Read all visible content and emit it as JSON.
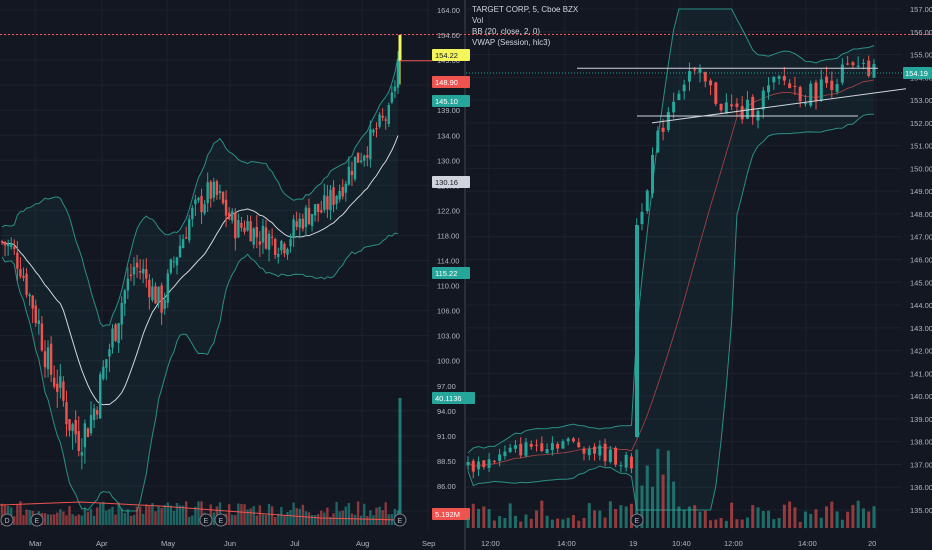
{
  "colors": {
    "bg": "#131722",
    "grid": "#1e222d",
    "up": "#26a69a",
    "down": "#ef5350",
    "text": "#b2b5be",
    "bb": "#2a8f86",
    "yellow": "#f4f65c",
    "sep": "#2a2e39"
  },
  "left_panel": {
    "price_ticks": [
      "164.00",
      "154.00",
      "149.00",
      "145.00",
      "139.00",
      "134.00",
      "130.00",
      "126.00",
      "122.00",
      "118.00",
      "114.00",
      "110.00",
      "106.00",
      "103.00",
      "100.00",
      "97.00",
      "94.00",
      "91.00",
      "88.50",
      "86.00",
      "83.00"
    ],
    "x_ticks": [
      "Mar",
      "Apr",
      "May",
      "Jun",
      "Jul",
      "Aug",
      "Sep"
    ],
    "badges": [
      {
        "text": "154.22",
        "color": "#f4f65c",
        "fg": "#131722",
        "value": 154.22
      },
      {
        "text": "148.90",
        "color": "#ef5350",
        "fg": "#ffffff",
        "value": 148.9
      },
      {
        "text": "145.10",
        "color": "#26a69a",
        "fg": "#ffffff",
        "value": 145.1
      },
      {
        "text": "130.16",
        "color": "#d1d4dc",
        "fg": "#131722",
        "value": 130.16
      },
      {
        "text": "115.22",
        "color": "#26a69a",
        "fg": "#ffffff",
        "value": 115.22
      },
      {
        "text": "40.1136",
        "color": "#26a69a",
        "fg": "#ffffff",
        "value": 40.1136
      },
      {
        "text": "5.192M",
        "color": "#ef5350",
        "fg": "#ffffff",
        "value": 5.192
      }
    ],
    "event_markers": [
      "D",
      "E",
      "E",
      "E",
      "E"
    ]
  },
  "right_panel": {
    "header": {
      "line1": "TARGET CORP, 5, Cboe BZX",
      "line2": "Vol",
      "line3": "BB (20, close, 2, 0)",
      "line4": "VWAP (Session, hlc3)"
    },
    "price_ticks": [
      "157.00",
      "156.00",
      "155.00",
      "154.00",
      "153.00",
      "152.00",
      "151.00",
      "150.00",
      "149.00",
      "148.00",
      "147.00",
      "146.00",
      "145.00",
      "144.00",
      "143.00",
      "142.00",
      "141.00",
      "140.00",
      "139.00",
      "138.00",
      "137.00",
      "136.00",
      "135.00"
    ],
    "x_ticks": [
      "12:00",
      "14:00",
      "19",
      "10:40",
      "12:00",
      "14:00",
      "20"
    ],
    "badges": [
      {
        "text": "154.19",
        "color": "#26a69a",
        "fg": "#ffffff",
        "value": 154.19
      }
    ],
    "event_markers": [
      "E"
    ]
  },
  "chart_data": [
    {
      "type": "candlestick",
      "title": "",
      "interval": "daily",
      "x_range": [
        "Feb",
        "Sep"
      ],
      "ylim": [
        83,
        164
      ],
      "close_path": [
        117,
        116,
        113,
        108,
        104,
        99,
        97,
        93,
        91,
        92,
        95,
        100,
        104,
        109,
        113,
        112,
        109,
        107,
        113,
        117,
        121,
        123,
        125,
        124,
        121,
        119,
        120,
        118,
        118,
        117,
        117,
        119,
        121,
        122,
        122,
        124,
        126,
        129,
        131,
        133,
        136,
        138,
        148.9
      ],
      "last_price": 148.9,
      "high": 154.22,
      "series": [
        {
          "name": "Vol",
          "peak_volume": "40.1136"
        }
      ]
    },
    {
      "type": "candlestick",
      "title": "TARGET CORP, 5, Cboe BZX",
      "interval": "5 min",
      "ylim": [
        134.6,
        157.5
      ],
      "close_path": [
        136.9,
        137.2,
        137.5,
        137.9,
        138.0,
        137.8,
        137.4,
        137.0,
        147.5,
        150.0,
        152.0,
        153.5,
        154.2,
        153.8,
        153.1,
        152.6,
        152.4,
        152.8,
        153.4,
        153.9,
        153.5,
        153.2,
        153.6,
        154.0,
        154.3,
        154.2,
        154.19
      ],
      "last_price": 154.19,
      "trendlines": [
        {
          "from": 154.4,
          "to": 154.4
        },
        {
          "from": 152.3,
          "to": 152.3
        },
        {
          "from": 152.0,
          "to": 153.5
        }
      ]
    }
  ]
}
